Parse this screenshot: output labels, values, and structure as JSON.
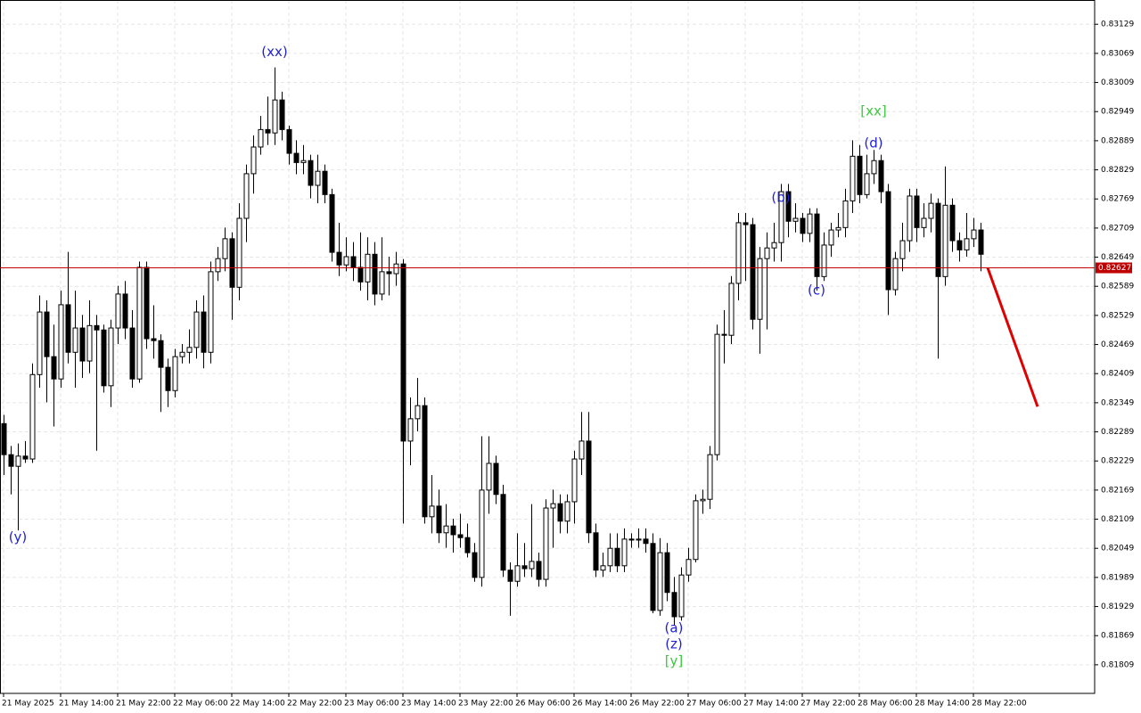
{
  "chart_data": {
    "type": "candlestick",
    "xlim": [
      -0.5,
      153
    ],
    "ylim": [
      0.8175,
      0.83179
    ],
    "grid": true,
    "bull_color": "#ffffff",
    "bear_color": "#000000",
    "xticks": [
      {
        "value": 0,
        "label": "21 May 2025"
      },
      {
        "value": 8,
        "label": "21 May 14:00"
      },
      {
        "value": 16,
        "label": "21 May 22:00"
      },
      {
        "value": 24,
        "label": "22 May 06:00"
      },
      {
        "value": 32,
        "label": "22 May 14:00"
      },
      {
        "value": 40,
        "label": "22 May 22:00"
      },
      {
        "value": 48,
        "label": "23 May 06:00"
      },
      {
        "value": 56,
        "label": "23 May 14:00"
      },
      {
        "value": 64,
        "label": "23 May 22:00"
      },
      {
        "value": 72,
        "label": "26 May 06:00"
      },
      {
        "value": 80,
        "label": "26 May 14:00"
      },
      {
        "value": 88,
        "label": "26 May 22:00"
      },
      {
        "value": 96,
        "label": "27 May 06:00"
      },
      {
        "value": 104,
        "label": "27 May 14:00"
      },
      {
        "value": 112,
        "label": "27 May 22:00"
      },
      {
        "value": 120,
        "label": "28 May 06:00"
      },
      {
        "value": 128,
        "label": "28 May 14:00"
      },
      {
        "value": 136,
        "label": "28 May 22:00"
      }
    ],
    "yticks": [
      0.83129,
      0.83069,
      0.83009,
      0.82949,
      0.82889,
      0.82829,
      0.82769,
      0.82709,
      0.82649,
      0.82589,
      0.82529,
      0.82469,
      0.82409,
      0.82349,
      0.82289,
      0.82229,
      0.82169,
      0.82109,
      0.82049,
      0.81989,
      0.81929,
      0.81869,
      0.81809
    ],
    "open": [
      0.82306,
      0.82242,
      0.82218,
      0.82239,
      0.82233,
      0.82407,
      0.82536,
      0.82444,
      0.82398,
      0.82551,
      0.82453,
      0.82503,
      0.82435,
      0.82508,
      0.82499,
      0.82384,
      0.82503,
      0.82573,
      0.82503,
      0.82398,
      0.82628,
      0.82481,
      0.82477,
      0.82422,
      0.82374,
      0.82444,
      0.82453,
      0.82463,
      0.82536,
      0.82453,
      0.82619,
      0.82646,
      0.82687,
      0.82587,
      0.82729,
      0.82821,
      0.82876,
      0.82912,
      0.82905,
      0.82973,
      0.82912,
      0.82863,
      0.82844,
      0.82848,
      0.82797,
      0.82826,
      0.82778,
      0.82659,
      0.82633,
      0.8265,
      0.82628,
      0.82598,
      0.82655,
      0.82573,
      0.82619,
      0.82615,
      0.82635,
      0.8227,
      0.82316,
      0.82343,
      0.82114,
      0.82136,
      0.82081,
      0.82095,
      0.82077,
      0.82071,
      0.8204,
      0.81989,
      0.82169,
      0.82224,
      0.8216,
      0.82004,
      0.81981,
      0.82013,
      0.82007,
      0.82022,
      0.81985,
      0.82132,
      0.82141,
      0.82105,
      0.82145,
      0.82233,
      0.8227,
      0.82081,
      0.82004,
      0.82013,
      0.82049,
      0.82013,
      0.82068,
      0.82066,
      0.82068,
      0.82059,
      0.81921,
      0.8204,
      0.81958,
      0.81908,
      0.81994,
      0.82026,
      0.82147,
      0.8215,
      0.82242,
      0.8249,
      0.82488,
      0.82595,
      0.8272,
      0.82716,
      0.82521,
      0.82646,
      0.82668,
      0.82679,
      0.82784,
      0.82723,
      0.82729,
      0.82698,
      0.82738,
      0.82609,
      0.82674,
      0.82705,
      0.8271,
      0.82765,
      0.82857,
      0.82778,
      0.82821,
      0.82848,
      0.82784,
      0.82582,
      0.82646,
      0.82683,
      0.82775,
      0.8271,
      0.82729,
      0.8276,
      0.82609,
      0.82756,
      0.82683,
      0.82664,
      0.82687,
      0.82705
    ],
    "high": [
      0.82324,
      0.8226,
      0.82265,
      0.8227,
      0.8243,
      0.8257,
      0.8256,
      0.8251,
      0.8258,
      0.8266,
      0.8258,
      0.8253,
      0.8256,
      0.8253,
      0.8251,
      0.8252,
      0.8259,
      0.826,
      0.8254,
      0.8264,
      0.8264,
      0.8255,
      0.8249,
      0.8244,
      0.8246,
      0.8247,
      0.825,
      0.8256,
      0.8257,
      0.8264,
      0.8267,
      0.8271,
      0.827,
      0.8276,
      0.8284,
      0.829,
      0.8294,
      0.8298,
      0.8304,
      0.8299,
      0.8292,
      0.8289,
      0.8288,
      0.8286,
      0.8286,
      0.8284,
      0.8279,
      0.8272,
      0.8269,
      0.8268,
      0.827,
      0.8269,
      0.8268,
      0.8269,
      0.8265,
      0.8266,
      0.82645,
      0.8236,
      0.824,
      0.8236,
      0.822,
      0.8217,
      0.8214,
      0.8211,
      0.8212,
      0.821,
      0.8206,
      0.8228,
      0.8228,
      0.8224,
      0.8218,
      0.8202,
      0.8208,
      0.8206,
      0.8214,
      0.8204,
      0.8215,
      0.8217,
      0.8216,
      0.8216,
      0.8225,
      0.8233,
      0.8233,
      0.821,
      0.8204,
      0.8208,
      0.8208,
      0.8209,
      0.8208,
      0.8209,
      0.8209,
      0.8208,
      0.8207,
      0.8206,
      0.8199,
      0.8201,
      0.8205,
      0.8216,
      0.8217,
      0.8226,
      0.8251,
      0.8254,
      0.8261,
      0.8274,
      0.8274,
      0.8273,
      0.8267,
      0.827,
      0.8272,
      0.828,
      0.828,
      0.8276,
      0.8274,
      0.8275,
      0.8275,
      0.827,
      0.8272,
      0.8274,
      0.8279,
      0.8289,
      0.8288,
      0.8286,
      0.8287,
      0.8286,
      0.828,
      0.8266,
      0.8272,
      0.8279,
      0.8279,
      0.8276,
      0.8278,
      0.8277,
      0.82836,
      0.8277,
      0.827,
      0.8274,
      0.8273,
      0.8272
    ],
    "low": [
      0.822,
      0.8216,
      0.82086,
      0.82225,
      0.82225,
      0.8238,
      0.8235,
      0.823,
      0.8238,
      0.8243,
      0.8238,
      0.824,
      0.8241,
      0.8225,
      0.8237,
      0.8234,
      0.8247,
      0.8248,
      0.8238,
      0.8239,
      0.8246,
      0.8244,
      0.8233,
      0.8234,
      0.8236,
      0.8243,
      0.8243,
      0.8244,
      0.8242,
      0.8243,
      0.826,
      0.8262,
      0.8252,
      0.8256,
      0.8268,
      0.8278,
      0.8286,
      0.8288,
      0.8288,
      0.8289,
      0.8284,
      0.8282,
      0.8282,
      0.8277,
      0.8276,
      0.8276,
      0.8264,
      0.8261,
      0.8262,
      0.826,
      0.8258,
      0.8256,
      0.8255,
      0.8256,
      0.8257,
      0.8259,
      0.821,
      0.8222,
      0.8229,
      0.821,
      0.8208,
      0.8206,
      0.8205,
      0.8204,
      0.8205,
      0.8203,
      0.8198,
      0.8197,
      0.8212,
      0.8214,
      0.8199,
      0.8191,
      0.8197,
      0.8199,
      0.8199,
      0.8197,
      0.8197,
      0.8205,
      0.8208,
      0.8208,
      0.821,
      0.822,
      0.8206,
      0.8199,
      0.8199,
      0.82,
      0.82,
      0.82,
      0.8205,
      0.8205,
      0.8204,
      0.81915,
      0.8191,
      0.8194,
      0.8189,
      0.819,
      0.8198,
      0.8202,
      0.8212,
      0.8213,
      0.8223,
      0.8243,
      0.8247,
      0.8256,
      0.826,
      0.825,
      0.8245,
      0.825,
      0.8264,
      0.8264,
      0.8269,
      0.827,
      0.8268,
      0.8268,
      0.8258,
      0.826,
      0.8265,
      0.8269,
      0.8269,
      0.8274,
      0.8276,
      0.8277,
      0.828,
      0.8276,
      0.8253,
      0.8257,
      0.8262,
      0.8266,
      0.8268,
      0.8269,
      0.827,
      0.8244,
      0.8259,
      0.8266,
      0.8264,
      0.8265,
      0.8267,
      0.8262
    ],
    "close": [
      0.82242,
      0.82218,
      0.82239,
      0.82233,
      0.82407,
      0.82536,
      0.82444,
      0.82398,
      0.82551,
      0.82453,
      0.82503,
      0.82435,
      0.82508,
      0.82499,
      0.82384,
      0.82503,
      0.82573,
      0.82503,
      0.82398,
      0.82628,
      0.82481,
      0.82477,
      0.82422,
      0.82374,
      0.82444,
      0.82453,
      0.82463,
      0.82536,
      0.82453,
      0.82619,
      0.82646,
      0.82687,
      0.82587,
      0.82729,
      0.82821,
      0.82876,
      0.82912,
      0.82905,
      0.82973,
      0.82912,
      0.82863,
      0.82844,
      0.82848,
      0.82797,
      0.82826,
      0.82778,
      0.82659,
      0.82633,
      0.8265,
      0.82628,
      0.82598,
      0.82655,
      0.82573,
      0.82619,
      0.82615,
      0.82635,
      0.8227,
      0.82316,
      0.82343,
      0.82114,
      0.82136,
      0.82081,
      0.82095,
      0.82077,
      0.82071,
      0.8204,
      0.81989,
      0.82169,
      0.82224,
      0.8216,
      0.82004,
      0.81981,
      0.82013,
      0.82007,
      0.82022,
      0.81985,
      0.82132,
      0.82141,
      0.82105,
      0.82145,
      0.82233,
      0.8227,
      0.82081,
      0.82004,
      0.82013,
      0.82049,
      0.82013,
      0.82068,
      0.82066,
      0.82068,
      0.82059,
      0.81921,
      0.8204,
      0.81958,
      0.81908,
      0.81994,
      0.82026,
      0.82147,
      0.8215,
      0.82242,
      0.8249,
      0.82488,
      0.82595,
      0.8272,
      0.82716,
      0.82521,
      0.82646,
      0.82668,
      0.82679,
      0.82784,
      0.82723,
      0.82729,
      0.82698,
      0.82738,
      0.82609,
      0.82674,
      0.82705,
      0.8271,
      0.82765,
      0.82857,
      0.82778,
      0.82821,
      0.82848,
      0.82784,
      0.82582,
      0.82646,
      0.82683,
      0.82775,
      0.8271,
      0.82729,
      0.8276,
      0.82609,
      0.82756,
      0.82683,
      0.82664,
      0.82687,
      0.82705,
      0.82655
    ],
    "current_price": {
      "value": 0.82627,
      "color": "#c00000"
    },
    "forecast": {
      "x": [
        138,
        145
      ],
      "values": [
        0.82627,
        0.82341
      ],
      "color": "#e00000"
    },
    "annotations": [
      {
        "text": "(y)",
        "x": 2,
        "y": 0.82071,
        "color": "#1f1fd8"
      },
      {
        "text": "(xx)",
        "x": 38,
        "y": 0.83072,
        "color": "#1f1fd8"
      },
      {
        "text": "(a)",
        "x": 94,
        "y": 0.81884,
        "color": "#1f1fd8"
      },
      {
        "text": "(z)",
        "x": 94,
        "y": 0.81851,
        "color": "#1f1fd8"
      },
      {
        "text": "[y]",
        "x": 94,
        "y": 0.81816,
        "color": "#3cc83c"
      },
      {
        "text": "(b)",
        "x": 109,
        "y": 0.82771,
        "color": "#1f1fd8"
      },
      {
        "text": "(c)",
        "x": 114,
        "y": 0.8258,
        "color": "#1f1fd8"
      },
      {
        "text": "[xx]",
        "x": 122,
        "y": 0.82949,
        "color": "#3cc83c"
      },
      {
        "text": "(d)",
        "x": 122,
        "y": 0.82883,
        "color": "#1f1fd8"
      }
    ]
  }
}
